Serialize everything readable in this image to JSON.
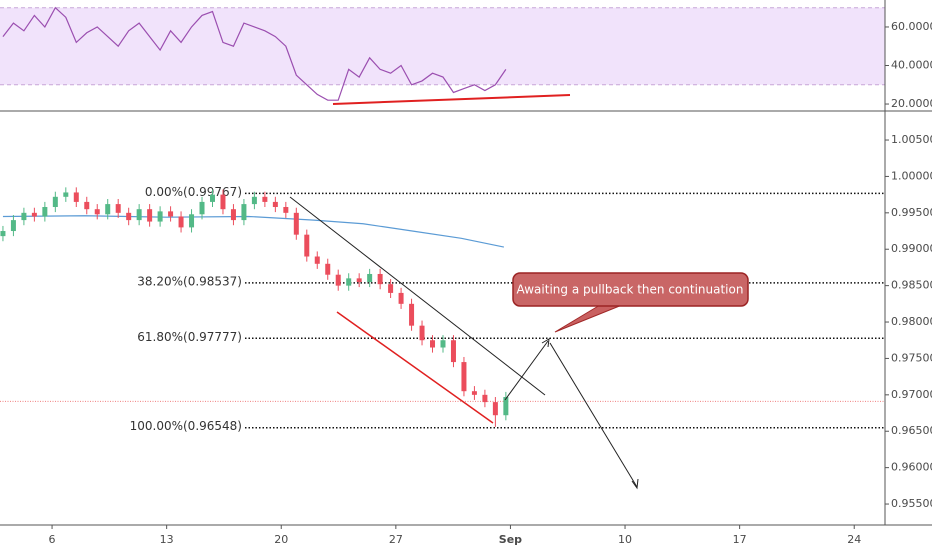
{
  "chart_data": [
    {
      "type": "candlestick",
      "x": [
        3,
        3.64,
        4.28,
        4.92,
        5.56,
        6.2,
        6.84,
        7.48,
        8.12,
        8.76,
        9.4,
        10.04,
        10.68,
        11.32,
        11.96,
        12.6,
        13.24,
        13.88,
        14.52,
        15.16,
        15.8,
        16.44,
        17.08,
        17.72,
        18.36,
        19,
        19.64,
        20.28,
        20.92,
        21.56,
        22.2,
        22.84,
        23.48,
        24.12,
        24.76,
        25.4,
        26.04,
        26.68,
        27.32,
        27.96,
        28.6,
        29.24,
        29.88,
        30.52,
        31.16,
        31.8,
        32.44,
        33.08,
        33.72
      ],
      "open": [
        0.9918,
        0.9925,
        0.994,
        0.995,
        0.9945,
        0.9958,
        0.9972,
        0.9978,
        0.9965,
        0.9955,
        0.9948,
        0.9962,
        0.995,
        0.994,
        0.9955,
        0.9938,
        0.9952,
        0.9945,
        0.993,
        0.9948,
        0.9965,
        0.9975,
        0.9955,
        0.994,
        0.9962,
        0.9972,
        0.9965,
        0.9958,
        0.995,
        0.992,
        0.989,
        0.988,
        0.9865,
        0.985,
        0.986,
        0.9855,
        0.9866,
        0.9852,
        0.984,
        0.9825,
        0.9795,
        0.9775,
        0.9765,
        0.9775,
        0.9745,
        0.9705,
        0.97,
        0.969,
        0.9672
      ],
      "high": [
        0.9932,
        0.9947,
        0.9957,
        0.9957,
        0.9965,
        0.9979,
        0.9985,
        0.9985,
        0.9972,
        0.9962,
        0.9969,
        0.9969,
        0.9957,
        0.9962,
        0.9962,
        0.9959,
        0.9959,
        0.9952,
        0.9955,
        0.9972,
        0.9982,
        0.9982,
        0.9962,
        0.9969,
        0.9979,
        0.9979,
        0.9972,
        0.9965,
        0.9957,
        0.9927,
        0.9897,
        0.9887,
        0.9872,
        0.9867,
        0.9867,
        0.9873,
        0.9873,
        0.9859,
        0.9847,
        0.9832,
        0.9802,
        0.9782,
        0.9782,
        0.9782,
        0.9752,
        0.9712,
        0.9707,
        0.9697,
        0.9704
      ],
      "low": [
        0.9911,
        0.9918,
        0.9933,
        0.9938,
        0.9938,
        0.9951,
        0.9965,
        0.9958,
        0.9948,
        0.9941,
        0.9941,
        0.9943,
        0.9933,
        0.9933,
        0.9931,
        0.9931,
        0.9938,
        0.9923,
        0.9923,
        0.9941,
        0.9958,
        0.9948,
        0.9933,
        0.9933,
        0.9955,
        0.9958,
        0.9951,
        0.9943,
        0.9913,
        0.9883,
        0.9873,
        0.9858,
        0.9843,
        0.9843,
        0.9848,
        0.9848,
        0.9845,
        0.9833,
        0.9818,
        0.9788,
        0.9768,
        0.9758,
        0.9758,
        0.9738,
        0.9698,
        0.9693,
        0.9683,
        0.9656,
        0.9665
      ],
      "close": [
        0.9925,
        0.994,
        0.995,
        0.9945,
        0.9958,
        0.9972,
        0.9978,
        0.9965,
        0.9955,
        0.9948,
        0.9962,
        0.995,
        0.994,
        0.9955,
        0.9938,
        0.9952,
        0.9945,
        0.993,
        0.9948,
        0.9965,
        0.9975,
        0.9955,
        0.994,
        0.9962,
        0.9972,
        0.9965,
        0.9958,
        0.995,
        0.992,
        0.989,
        0.988,
        0.9865,
        0.985,
        0.986,
        0.9855,
        0.9866,
        0.9852,
        0.984,
        0.9825,
        0.9795,
        0.9775,
        0.9765,
        0.9775,
        0.9745,
        0.9705,
        0.97,
        0.969,
        0.9672,
        0.9697
      ],
      "up_color": "#53b987",
      "down_color": "#eb4d5c",
      "ma": {
        "color": "#5b9bd5",
        "x": [
          3,
          8,
          13,
          18,
          22,
          25,
          28,
          31,
          33.6
        ],
        "values": [
          0.9945,
          0.9946,
          0.9944,
          0.9945,
          0.994,
          0.9935,
          0.9925,
          0.9915,
          0.9903
        ]
      },
      "last_price": 0.9691,
      "last_price_color": "#f08080",
      "levels": [
        {
          "label": "0.00%(0.99767)",
          "value": 0.99767
        },
        {
          "label": "38.20%(0.98537)",
          "value": 0.98537
        },
        {
          "label": "61.80%(0.97777)",
          "value": 0.97777
        },
        {
          "label": "100.00%(0.96548)",
          "value": 0.96548
        }
      ],
      "annotation": "Awaiting a pullback then continuation",
      "xlim": [
        2.82,
        56.88
      ],
      "xticks": [
        6,
        13,
        20,
        27,
        {
          "value": 34,
          "label": "Sep"
        },
        {
          "value": 41,
          "label": "10"
        },
        {
          "value": 48,
          "label": "17"
        },
        {
          "value": 55,
          "label": "24"
        }
      ],
      "ylim": [
        0.95212,
        1.00885
      ],
      "yticks": [
        {
          "value": 0.955,
          "label": "0.95500"
        },
        {
          "value": 0.96,
          "label": "0.96000"
        },
        {
          "value": 0.965,
          "label": "0.96500"
        },
        {
          "value": 0.97,
          "label": "0.97000"
        },
        {
          "value": 0.975,
          "label": "0.97500"
        },
        {
          "value": 0.98,
          "label": "0.98000"
        },
        {
          "value": 0.985,
          "label": "0.98500"
        },
        {
          "value": 0.99,
          "label": "0.99000"
        },
        {
          "value": 0.995,
          "label": "0.99500"
        },
        {
          "value": 1,
          "label": "1.00000"
        },
        {
          "value": 1.005,
          "label": "1.00500"
        }
      ]
    },
    {
      "type": "line",
      "color": "#9b4fb0",
      "values": [
        55,
        62,
        58,
        66,
        60,
        70,
        65,
        52,
        57,
        60,
        55,
        50,
        58,
        62,
        55,
        48,
        58,
        52,
        60,
        66,
        68,
        52,
        50,
        62,
        60,
        58,
        55,
        50,
        35,
        30,
        25,
        22,
        22,
        38,
        34,
        44,
        38,
        36,
        40,
        30,
        32,
        36,
        34,
        26,
        28,
        30,
        27,
        30,
        38
      ],
      "band": [
        30,
        70
      ],
      "band_color": "#f1e3fb",
      "ylim": [
        16.9,
        74
      ],
      "yticks": [
        {
          "value": 20,
          "label": "20.0000"
        },
        {
          "value": 40,
          "label": "40.0000"
        },
        {
          "value": 60,
          "label": "60.0000"
        }
      ]
    }
  ]
}
